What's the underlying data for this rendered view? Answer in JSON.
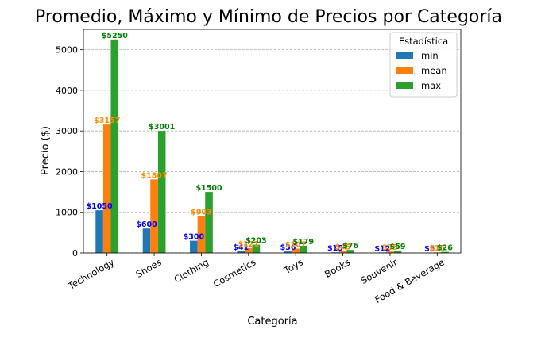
{
  "chart_data": {
    "type": "bar",
    "title": "Promedio, Máximo y Mínimo de Precios por Categoría",
    "xlabel": "Categoría",
    "ylabel": "Precio ($)",
    "ylim": [
      0,
      5500
    ],
    "yticks": [
      0,
      1000,
      2000,
      3000,
      4000,
      5000
    ],
    "grid": "y-dashed",
    "categories": [
      "Technology",
      "Shoes",
      "Clothing",
      "Cosmetics",
      "Toys",
      "Books",
      "Souvenir",
      "Food & Beverage"
    ],
    "legend": {
      "title": "Estadística",
      "placement": "top-right"
    },
    "series": [
      {
        "name": "min",
        "color": "#1f77b4",
        "label_color": "#0000ff",
        "values": [
          1050,
          600,
          300,
          41,
          36,
          15,
          12,
          5
        ],
        "labels": [
          "$1050",
          "$600",
          "$300",
          "$41",
          "$36",
          "$15",
          "$12",
          "$5"
        ]
      },
      {
        "name": "mean",
        "color": "#ff7f0e",
        "label_color": "#ff8c00",
        "values": [
          3157,
          1807,
          903,
          121,
          107,
          45,
          35,
          15
        ],
        "labels": [
          "$3157",
          "$1807",
          "$903",
          "$121",
          "$107",
          "$45",
          "$35",
          "$15"
        ]
      },
      {
        "name": "max",
        "color": "#2ca02c",
        "label_color": "#008000",
        "values": [
          5250,
          3001,
          1500,
          203,
          179,
          76,
          59,
          26
        ],
        "labels": [
          "$5250",
          "$3001",
          "$1500",
          "$203",
          "$179",
          "$76",
          "$59",
          "$26"
        ]
      }
    ]
  }
}
